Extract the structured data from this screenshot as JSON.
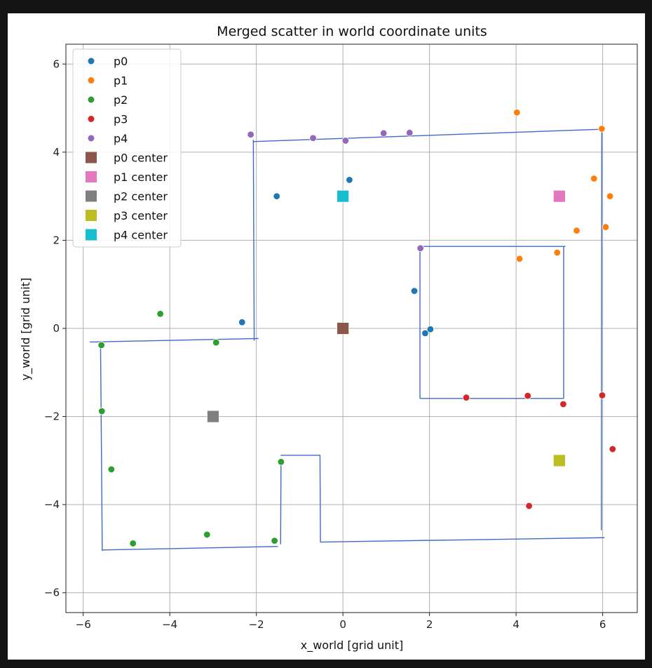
{
  "chart_data": {
    "type": "scatter",
    "title": "Merged scatter in world coordinate units",
    "xlabel": "x_world [grid unit]",
    "ylabel": "y_world [grid unit]",
    "xlim": [
      -6.4,
      6.8
    ],
    "ylim": [
      -6.45,
      6.45
    ],
    "xticks": [
      -6,
      -4,
      -2,
      0,
      2,
      4,
      6
    ],
    "yticks": [
      -6,
      -4,
      -2,
      0,
      2,
      4,
      6
    ],
    "grid": true,
    "legend_position": "top-left",
    "series": [
      {
        "name": "p0",
        "color": "#1f77b4",
        "points": [
          [
            -1.53,
            3.0
          ],
          [
            0.15,
            3.37
          ],
          [
            -2.33,
            0.14
          ],
          [
            1.65,
            0.85
          ],
          [
            1.9,
            -0.11
          ],
          [
            2.02,
            -0.02
          ]
        ]
      },
      {
        "name": "p1",
        "color": "#ff7f0e",
        "points": [
          [
            4.02,
            4.9
          ],
          [
            5.98,
            4.53
          ],
          [
            5.8,
            3.4
          ],
          [
            6.17,
            3.0
          ],
          [
            5.4,
            2.22
          ],
          [
            6.07,
            2.3
          ],
          [
            4.08,
            1.58
          ],
          [
            4.95,
            1.72
          ]
        ]
      },
      {
        "name": "p2",
        "color": "#2ca02c",
        "points": [
          [
            -4.22,
            0.33
          ],
          [
            -5.58,
            -0.38
          ],
          [
            -2.93,
            -0.32
          ],
          [
            -5.57,
            -1.88
          ],
          [
            -5.35,
            -3.2
          ],
          [
            -1.43,
            -3.03
          ],
          [
            -4.85,
            -4.88
          ],
          [
            -3.14,
            -4.68
          ],
          [
            -1.58,
            -4.82
          ]
        ]
      },
      {
        "name": "p3",
        "color": "#d62728",
        "points": [
          [
            2.85,
            -1.57
          ],
          [
            4.27,
            -1.53
          ],
          [
            5.09,
            -1.72
          ],
          [
            5.99,
            -1.52
          ],
          [
            6.23,
            -2.74
          ],
          [
            4.3,
            -4.03
          ]
        ]
      },
      {
        "name": "p4",
        "color": "#9467bd",
        "points": [
          [
            -2.13,
            4.4
          ],
          [
            -0.69,
            4.32
          ],
          [
            0.06,
            4.26
          ],
          [
            0.94,
            4.43
          ],
          [
            1.54,
            4.44
          ],
          [
            1.79,
            1.82
          ]
        ]
      }
    ],
    "centers": [
      {
        "name": "p0 center",
        "color": "#8c564b",
        "x": 0,
        "y": 0
      },
      {
        "name": "p1 center",
        "color": "#e377c2",
        "x": 5,
        "y": 3
      },
      {
        "name": "p2 center",
        "color": "#7f7f7f",
        "x": -3,
        "y": -2
      },
      {
        "name": "p3 center",
        "color": "#bcbd22",
        "x": 5,
        "y": -3
      },
      {
        "name": "p4 center",
        "color": "#17becf",
        "x": 0,
        "y": 3
      }
    ],
    "line_color": "#4169c8",
    "lines": [
      [
        [
          -2.08,
          4.24
        ],
        [
          5.98,
          4.52
        ]
      ],
      [
        [
          5.98,
          4.6
        ],
        [
          5.97,
          -4.58
        ]
      ],
      [
        [
          -2.07,
          4.28
        ],
        [
          -2.05,
          -0.28
        ]
      ],
      [
        [
          -5.85,
          -0.31
        ],
        [
          -1.95,
          -0.23
        ]
      ],
      [
        [
          -5.6,
          -0.29
        ],
        [
          -5.56,
          -5.05
        ]
      ],
      [
        [
          -5.56,
          -5.03
        ],
        [
          -1.5,
          -4.95
        ]
      ],
      [
        [
          -1.44,
          -4.9
        ],
        [
          -1.43,
          -2.97
        ]
      ],
      [
        [
          -1.44,
          -2.88
        ],
        [
          -0.52,
          -2.88
        ]
      ],
      [
        [
          -0.53,
          -2.88
        ],
        [
          -0.52,
          -4.85
        ]
      ],
      [
        [
          -0.53,
          -4.85
        ],
        [
          6.04,
          -4.75
        ]
      ],
      [
        [
          1.78,
          1.86
        ],
        [
          5.14,
          1.86
        ]
      ],
      [
        [
          1.78,
          1.86
        ],
        [
          1.78,
          -1.59
        ]
      ],
      [
        [
          1.78,
          -1.59
        ],
        [
          5.1,
          -1.59
        ]
      ],
      [
        [
          5.1,
          -1.59
        ],
        [
          5.1,
          1.86
        ]
      ]
    ]
  }
}
